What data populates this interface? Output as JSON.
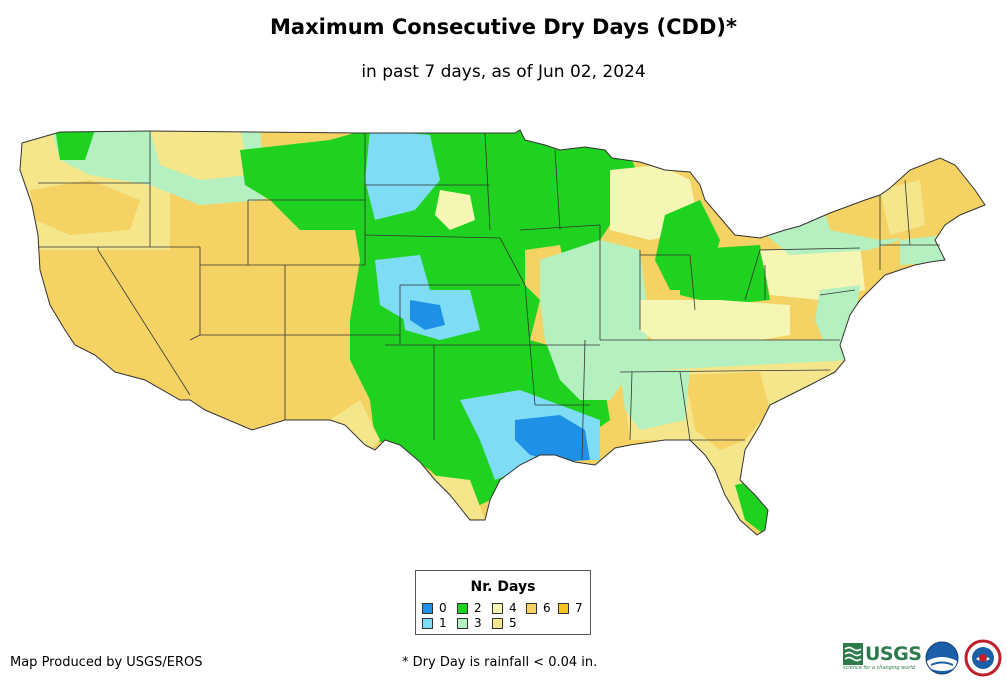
{
  "header": {
    "title": "Maximum Consecutive Dry Days (CDD)*",
    "subtitle": "in past 7 days, as of Jun 02, 2024"
  },
  "legend": {
    "title": "Nr. Days",
    "items": [
      {
        "label": "0",
        "color": "#1e90e6"
      },
      {
        "label": "1",
        "color": "#7fdcf5"
      },
      {
        "label": "2",
        "color": "#1fd21f"
      },
      {
        "label": "3",
        "color": "#b4f0c0"
      },
      {
        "label": "4",
        "color": "#f5f5b4"
      },
      {
        "label": "5",
        "color": "#f5e68c"
      },
      {
        "label": "6",
        "color": "#f5d264"
      },
      {
        "label": "7",
        "color": "#f5c31e"
      }
    ]
  },
  "footer": {
    "producer": "Map Produced by USGS/EROS",
    "footnote": "* Dry Day is rainfall < 0.04 in.",
    "usgs_logo": "USGS",
    "usgs_tagline": "science for a changing world"
  },
  "map": {
    "description_regions": [
      {
        "name": "west",
        "days": 6
      },
      {
        "name": "pacific-northwest",
        "days": 5
      },
      {
        "name": "northern-rockies",
        "days": 3
      },
      {
        "name": "plains",
        "days": 2
      },
      {
        "name": "texas-oklahoma",
        "days": 1
      },
      {
        "name": "louisiana-gulf",
        "days": 0
      },
      {
        "name": "midwest",
        "days": 3
      },
      {
        "name": "ohio-valley",
        "days": 4
      },
      {
        "name": "southeast",
        "days": 6
      },
      {
        "name": "northeast",
        "days": 5
      }
    ]
  }
}
